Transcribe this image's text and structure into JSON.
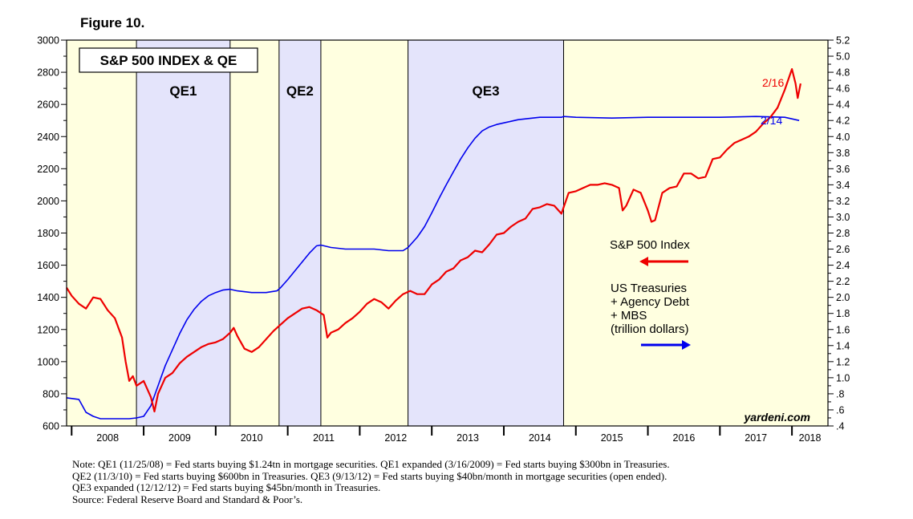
{
  "figure_label": "Figure 10.",
  "chart_data": {
    "type": "line",
    "title": "S&P 500 INDEX & QE",
    "x_range": [
      2007.93,
      2018.5
    ],
    "x_ticks": [
      "2008",
      "2009",
      "2010",
      "2011",
      "2012",
      "2013",
      "2014",
      "2015",
      "2016",
      "2017",
      "2018"
    ],
    "y_left": {
      "range": [
        600,
        3000
      ],
      "ticks": [
        "600",
        "800",
        "1000",
        "1200",
        "1400",
        "1600",
        "1800",
        "2000",
        "2200",
        "2400",
        "2600",
        "2800",
        "3000"
      ]
    },
    "y_right": {
      "range": [
        0.4,
        5.2
      ],
      "ticks": [
        ".4",
        ".6",
        ".8",
        "1.0",
        "1.2",
        "1.4",
        "1.6",
        "1.8",
        "2.0",
        "2.2",
        "2.4",
        "2.6",
        "2.8",
        "3.0",
        "3.2",
        "3.4",
        "3.6",
        "3.8",
        "4.0",
        "4.2",
        "4.4",
        "4.6",
        "4.8",
        "5.0",
        "5.2"
      ]
    },
    "bands": [
      {
        "label": "",
        "start": 2007.93,
        "end": 2008.9,
        "color": "#ffffe0"
      },
      {
        "label": "QE1",
        "start": 2008.9,
        "end": 2010.2,
        "color": "#e4e4fb"
      },
      {
        "label": "",
        "start": 2010.2,
        "end": 2010.88,
        "color": "#ffffe0"
      },
      {
        "label": "QE2",
        "start": 2010.88,
        "end": 2011.46,
        "color": "#e4e4fb"
      },
      {
        "label": "",
        "start": 2011.46,
        "end": 2012.67,
        "color": "#ffffe0"
      },
      {
        "label": "QE3",
        "start": 2012.67,
        "end": 2014.83,
        "color": "#e4e4fb"
      },
      {
        "label": "",
        "start": 2014.83,
        "end": 2018.5,
        "color": "#ffffe0"
      }
    ],
    "series": [
      {
        "name": "S&P 500 Index",
        "axis": "left",
        "color": "#ee0000",
        "end_label": "2/16",
        "x": [
          2007.93,
          2008.0,
          2008.1,
          2008.2,
          2008.3,
          2008.4,
          2008.5,
          2008.6,
          2008.7,
          2008.75,
          2008.8,
          2008.85,
          2008.9,
          2009.0,
          2009.1,
          2009.15,
          2009.2,
          2009.3,
          2009.4,
          2009.5,
          2009.6,
          2009.7,
          2009.8,
          2009.9,
          2010.0,
          2010.1,
          2010.2,
          2010.25,
          2010.3,
          2010.4,
          2010.5,
          2010.6,
          2010.7,
          2010.8,
          2010.9,
          2011.0,
          2011.1,
          2011.2,
          2011.3,
          2011.4,
          2011.5,
          2011.55,
          2011.6,
          2011.7,
          2011.8,
          2011.9,
          2012.0,
          2012.1,
          2012.2,
          2012.3,
          2012.4,
          2012.5,
          2012.6,
          2012.7,
          2012.8,
          2012.9,
          2013.0,
          2013.1,
          2013.2,
          2013.3,
          2013.4,
          2013.5,
          2013.6,
          2013.7,
          2013.8,
          2013.9,
          2014.0,
          2014.1,
          2014.2,
          2014.3,
          2014.4,
          2014.5,
          2014.6,
          2014.7,
          2014.8,
          2014.9,
          2015.0,
          2015.1,
          2015.2,
          2015.3,
          2015.4,
          2015.5,
          2015.6,
          2015.65,
          2015.7,
          2015.8,
          2015.9,
          2016.0,
          2016.05,
          2016.1,
          2016.2,
          2016.3,
          2016.4,
          2016.5,
          2016.6,
          2016.7,
          2016.8,
          2016.9,
          2017.0,
          2017.1,
          2017.2,
          2017.3,
          2017.4,
          2017.5,
          2017.6,
          2017.7,
          2017.8,
          2017.9,
          2018.0,
          2018.05,
          2018.08,
          2018.12
        ],
        "y": [
          1460,
          1410,
          1360,
          1330,
          1400,
          1390,
          1320,
          1270,
          1150,
          1000,
          880,
          910,
          850,
          880,
          780,
          690,
          800,
          900,
          930,
          990,
          1030,
          1060,
          1090,
          1110,
          1120,
          1140,
          1180,
          1210,
          1160,
          1080,
          1060,
          1090,
          1140,
          1190,
          1230,
          1270,
          1300,
          1330,
          1340,
          1320,
          1290,
          1150,
          1180,
          1200,
          1240,
          1270,
          1310,
          1360,
          1390,
          1370,
          1330,
          1380,
          1420,
          1440,
          1420,
          1420,
          1480,
          1510,
          1560,
          1580,
          1630,
          1650,
          1690,
          1680,
          1730,
          1790,
          1800,
          1840,
          1870,
          1890,
          1950,
          1960,
          1980,
          1970,
          1920,
          2050,
          2060,
          2080,
          2100,
          2100,
          2110,
          2100,
          2080,
          1940,
          1970,
          2070,
          2050,
          1940,
          1870,
          1880,
          2050,
          2080,
          2090,
          2170,
          2170,
          2140,
          2150,
          2260,
          2270,
          2320,
          2360,
          2380,
          2400,
          2430,
          2480,
          2520,
          2580,
          2690,
          2820,
          2730,
          2640,
          2730
        ]
      },
      {
        "name": "US Treasuries + Agency Debt + MBS (trillion dollars)",
        "axis": "right",
        "color": "#0000ee",
        "end_label": "2/14",
        "x": [
          2007.93,
          2008.1,
          2008.2,
          2008.3,
          2008.4,
          2008.5,
          2008.6,
          2008.7,
          2008.8,
          2008.9,
          2009.0,
          2009.1,
          2009.2,
          2009.3,
          2009.4,
          2009.5,
          2009.6,
          2009.7,
          2009.8,
          2009.9,
          2010.0,
          2010.1,
          2010.2,
          2010.3,
          2010.5,
          2010.7,
          2010.85,
          2010.9,
          2011.0,
          2011.1,
          2011.2,
          2011.3,
          2011.4,
          2011.46,
          2011.6,
          2011.8,
          2012.0,
          2012.2,
          2012.4,
          2012.6,
          2012.67,
          2012.8,
          2012.9,
          2013.0,
          2013.1,
          2013.2,
          2013.3,
          2013.4,
          2013.5,
          2013.6,
          2013.7,
          2013.8,
          2013.9,
          2014.0,
          2014.1,
          2014.2,
          2014.3,
          2014.4,
          2014.5,
          2014.6,
          2014.7,
          2014.8,
          2014.83,
          2015.0,
          2015.5,
          2016.0,
          2016.5,
          2017.0,
          2017.5,
          2017.9,
          2018.1
        ],
        "y": [
          0.75,
          0.73,
          0.57,
          0.52,
          0.49,
          0.49,
          0.49,
          0.49,
          0.49,
          0.5,
          0.52,
          0.65,
          0.9,
          1.15,
          1.35,
          1.55,
          1.72,
          1.85,
          1.95,
          2.02,
          2.06,
          2.09,
          2.1,
          2.08,
          2.06,
          2.06,
          2.08,
          2.12,
          2.22,
          2.33,
          2.44,
          2.55,
          2.64,
          2.65,
          2.62,
          2.6,
          2.6,
          2.6,
          2.58,
          2.58,
          2.62,
          2.75,
          2.88,
          3.05,
          3.23,
          3.4,
          3.56,
          3.72,
          3.86,
          3.98,
          4.07,
          4.12,
          4.15,
          4.17,
          4.19,
          4.21,
          4.22,
          4.23,
          4.24,
          4.24,
          4.24,
          4.24,
          4.25,
          4.24,
          4.23,
          4.24,
          4.24,
          4.24,
          4.25,
          4.24,
          4.2
        ]
      }
    ],
    "legend": {
      "sp500_label": "S&P 500 Index",
      "fed_label_lines": [
        "US Treasuries",
        "+ Agency Debt",
        "+ MBS",
        "(trillion dollars)"
      ]
    },
    "source_mark": "yardeni.com"
  },
  "notes": [
    "Note: QE1 (11/25/08) = Fed starts buying $1.24tn in mortgage securities. QE1 expanded (3/16/2009) = Fed starts buying $300bn in Treasuries.",
    "QE2 (11/3/10) = Fed starts buying $600bn in Treasuries. QE3 (9/13/12) = Fed starts buying $40bn/month in mortgage securities (open ended).",
    "QE3 expanded (12/12/12) = Fed starts buying $45bn/month in Treasuries.",
    "Source: Federal Reserve Board and Standard & Poor’s."
  ],
  "colors": {
    "sp500": "#ee0000",
    "fed": "#0000ee",
    "qe_band": "#e4e4fb",
    "base_band": "#ffffe0"
  }
}
